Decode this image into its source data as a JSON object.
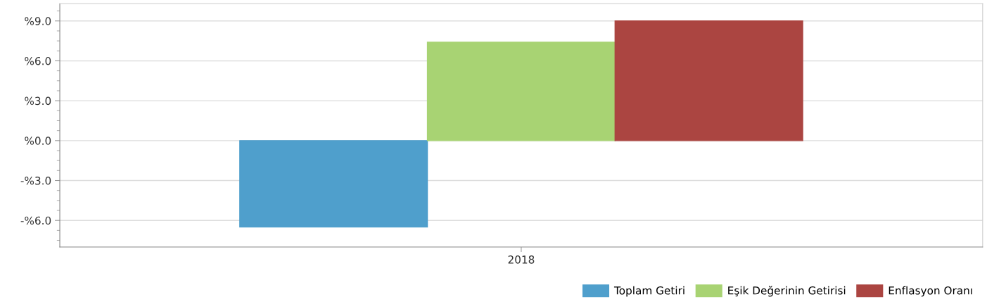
{
  "chart_data": {
    "type": "bar",
    "categories": [
      "2018"
    ],
    "series": [
      {
        "name": "Toplam Getiri",
        "color": "#4f9fcc",
        "values": [
          -6.5
        ]
      },
      {
        "name": "Eşik Değerinin Getirisi",
        "color": "#a8d373",
        "values": [
          7.4
        ]
      },
      {
        "name": "Enflasyon Oranı",
        "color": "#ab4541",
        "values": [
          9.0
        ]
      }
    ],
    "ylim": [
      -8.0,
      10.3
    ],
    "yticks": [
      {
        "value": -6,
        "label": "-%6.0"
      },
      {
        "value": -3,
        "label": "-%3.0"
      },
      {
        "value": 0,
        "label": "%0.0"
      },
      {
        "value": 3,
        "label": "%3.0"
      },
      {
        "value": 6,
        "label": "%6.0"
      },
      {
        "value": 9,
        "label": "%9.0"
      }
    ],
    "grid": "y",
    "legend": "bottom right"
  }
}
